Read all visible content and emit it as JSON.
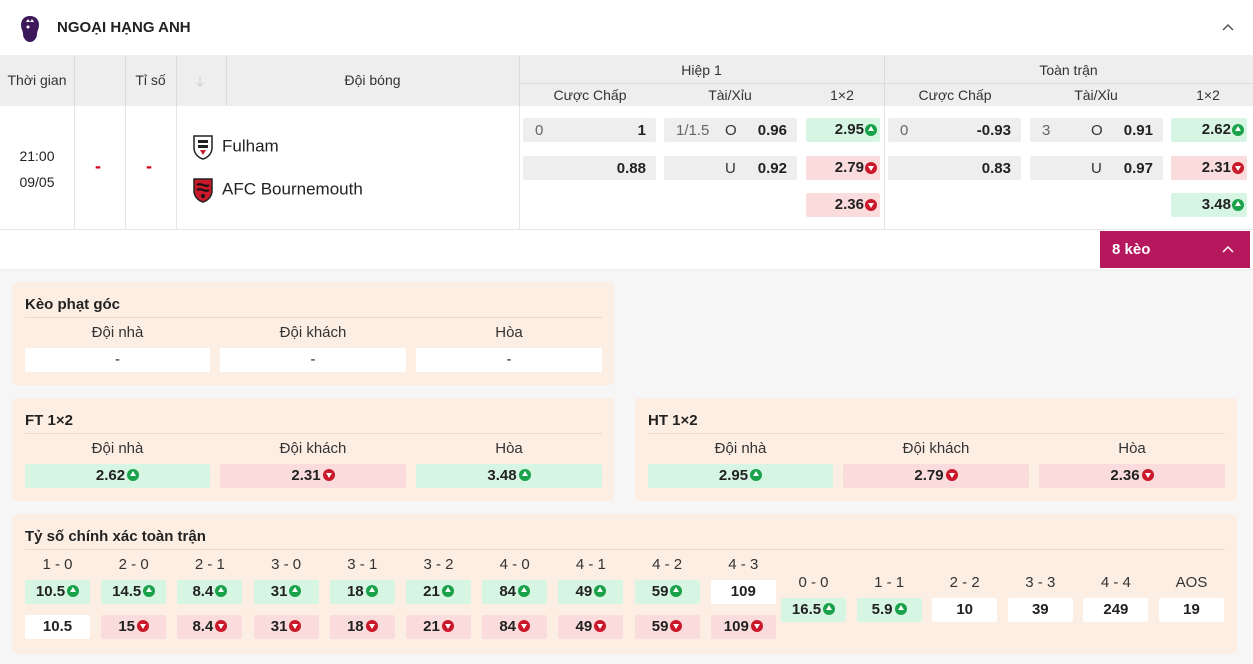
{
  "league": {
    "title": "NGOẠI HẠNG ANH"
  },
  "header": {
    "time": "Thời gian",
    "score": "Tỉ số",
    "team": "Đội bóng",
    "half1": "Hiệp 1",
    "fulltime": "Toàn trận",
    "handicap": "Cược Chấp",
    "overunder": "Tài/Xỉu",
    "onextwo": "1×2"
  },
  "match": {
    "time": "21:00",
    "date": "09/05",
    "score_home": "-",
    "score_away": "-",
    "home": "Fulham",
    "away": "AFC Bournemouth",
    "h1": {
      "hcp_line": "0",
      "hcp_home": "1",
      "hcp_away": "0.88",
      "ou_line": "1/1.5",
      "ou_o": "O",
      "ou_o_val": "0.96",
      "ou_u": "U",
      "ou_u_val": "0.92",
      "x1": "2.95",
      "x2": "2.79",
      "x3": "2.36"
    },
    "ft": {
      "hcp_line": "0",
      "hcp_home": "-0.93",
      "hcp_away": "0.83",
      "ou_line": "3",
      "ou_o": "O",
      "ou_o_val": "0.91",
      "ou_u": "U",
      "ou_u_val": "0.97",
      "x1": "2.62",
      "x2": "2.31",
      "x3": "3.48"
    }
  },
  "more_button": "8 kèo",
  "corner": {
    "title": "Kèo phạt góc",
    "home": "Đội nhà",
    "away": "Đội khách",
    "draw": "Hòa",
    "v_home": "-",
    "v_away": "-",
    "v_draw": "-"
  },
  "ft12": {
    "title": "FT 1×2",
    "home": "Đội nhà",
    "away": "Đội khách",
    "draw": "Hòa",
    "v_home": "2.62",
    "v_away": "2.31",
    "v_draw": "3.48"
  },
  "ht12": {
    "title": "HT 1×2",
    "home": "Đội nhà",
    "away": "Đội khách",
    "draw": "Hòa",
    "v_home": "2.95",
    "v_away": "2.79",
    "v_draw": "2.36"
  },
  "exact": {
    "title": "Tỷ số chính xác toàn trận",
    "home_cols": [
      {
        "label": "1 - 0",
        "top": "10.5",
        "top_dir": "up",
        "bot": "10.5",
        "bot_dir": "none"
      },
      {
        "label": "2 - 0",
        "top": "14.5",
        "top_dir": "up",
        "bot": "15",
        "bot_dir": "down"
      },
      {
        "label": "2 - 1",
        "top": "8.4",
        "top_dir": "up",
        "bot": "8.4",
        "bot_dir": "down"
      },
      {
        "label": "3 - 0",
        "top": "31",
        "top_dir": "up",
        "bot": "31",
        "bot_dir": "down"
      },
      {
        "label": "3 - 1",
        "top": "18",
        "top_dir": "up",
        "bot": "18",
        "bot_dir": "down"
      },
      {
        "label": "3 - 2",
        "top": "21",
        "top_dir": "up",
        "bot": "21",
        "bot_dir": "down"
      },
      {
        "label": "4 - 0",
        "top": "84",
        "top_dir": "up",
        "bot": "84",
        "bot_dir": "down"
      },
      {
        "label": "4 - 1",
        "top": "49",
        "top_dir": "up",
        "bot": "49",
        "bot_dir": "down"
      },
      {
        "label": "4 - 2",
        "top": "59",
        "top_dir": "up",
        "bot": "59",
        "bot_dir": "down"
      },
      {
        "label": "4 - 3",
        "top": "109",
        "top_dir": "none",
        "bot": "109",
        "bot_dir": "down"
      }
    ],
    "draw_cols": [
      {
        "label": "0 - 0",
        "val": "16.5",
        "dir": "up"
      },
      {
        "label": "1 - 1",
        "val": "5.9",
        "dir": "up"
      },
      {
        "label": "2 - 2",
        "val": "10",
        "dir": "none"
      },
      {
        "label": "3 - 3",
        "val": "39",
        "dir": "none"
      },
      {
        "label": "4 - 4",
        "val": "249",
        "dir": "none"
      },
      {
        "label": "AOS",
        "val": "19",
        "dir": "none"
      }
    ]
  },
  "colors": {
    "accent": "#b5185c",
    "up": "#d7f5e3",
    "down": "#fbdcdc",
    "score_dash": "#d0021b"
  }
}
